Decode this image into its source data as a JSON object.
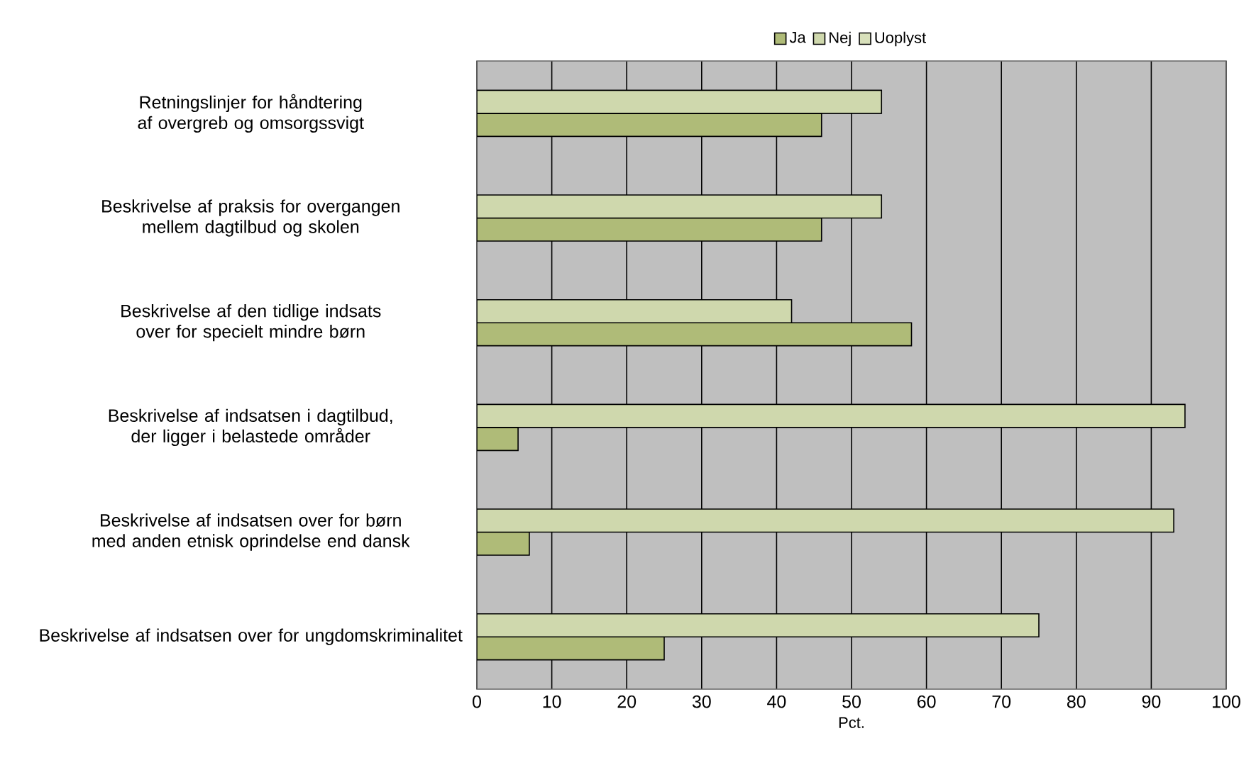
{
  "chart_data": {
    "type": "bar",
    "orientation": "horizontal",
    "xlabel": "Pct.",
    "categories": [
      "Retningslinjer for håndtering af overgreb og omsorgssvigt",
      "Beskrivelse af praksis for overgangen mellem dagtilbud og skolen",
      "Beskrivelse af den tidlige indsats over for specielt mindre børn",
      "Beskrivelse af indsatsen i dagtilbud, der ligger i belastede områder",
      "Beskrivelse af indsatsen over for børn med anden etnisk oprindelse end dansk",
      "Beskrivelse af indsatsen over for ungdomskriminalitet"
    ],
    "series": [
      {
        "name": "Ja",
        "color": "#afbb78",
        "values": [
          46,
          46,
          58,
          5.5,
          7,
          25
        ]
      },
      {
        "name": "Nej",
        "color": "#cfd8ad",
        "values": [
          54,
          54,
          42,
          94.5,
          93,
          75
        ]
      },
      {
        "name": "Uoplyst",
        "color": "#d8e0bb",
        "values": [
          null,
          null,
          null,
          null,
          null,
          null
        ]
      }
    ],
    "xlim": [
      0,
      100
    ],
    "xticks": [
      0,
      10,
      20,
      30,
      40,
      50,
      60,
      70,
      80,
      90,
      100
    ],
    "grid": "x",
    "legend": "top"
  }
}
